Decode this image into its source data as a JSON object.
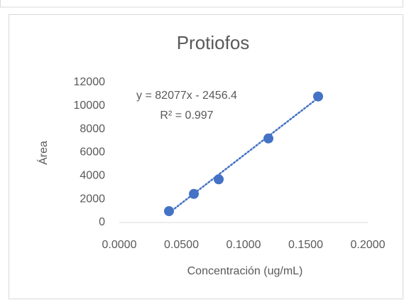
{
  "chart_data": {
    "type": "scatter",
    "title": "Protiofos",
    "x_label": "Concentración (ug/mL)",
    "y_label": "Área",
    "series": [
      {
        "name": "Protiofos",
        "color": "#4472c4",
        "x": [
          0.04,
          0.06,
          0.08,
          0.12,
          0.16
        ],
        "values": [
          975,
          2450,
          3700,
          7200,
          10800
        ]
      }
    ],
    "xlim": [
      0,
      0.2
    ],
    "xticks": [
      {
        "value": 0,
        "label": "0.0000"
      },
      {
        "value": 0.05,
        "label": "0.0500"
      },
      {
        "value": 0.1,
        "label": "0.1000"
      },
      {
        "value": 0.15,
        "label": "0.1500"
      },
      {
        "value": 0.2,
        "label": "0.2000"
      }
    ],
    "ylim": [
      0,
      12000
    ],
    "yticks": [
      0,
      2000,
      4000,
      6000,
      8000,
      10000,
      12000
    ],
    "grid": false,
    "trendline": {
      "slope": 82077,
      "intercept": -2456.4,
      "label": "y = 82077x - 2456.4",
      "r2": 0.997,
      "r2_label": "R² = 0.997"
    }
  }
}
